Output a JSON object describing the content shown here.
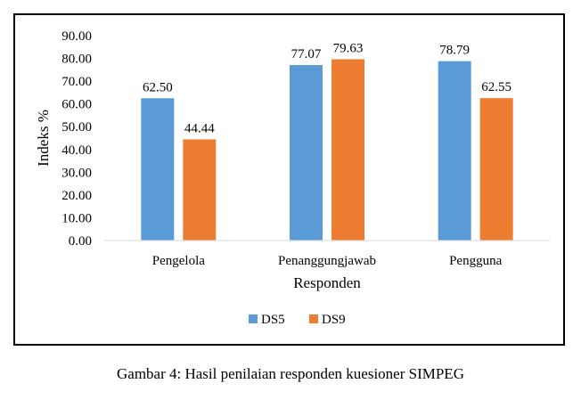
{
  "caption": "Gambar 4:  Hasil penilaian responden kuesioner SIMPEG",
  "chart_data": {
    "type": "bar",
    "title": "",
    "xlabel": "Responden",
    "ylabel": "Indeks %",
    "categories": [
      "Pengelola",
      "Penanggungjawab",
      "Pengguna"
    ],
    "series": [
      {
        "name": "DS5",
        "color": "#5b9bd5",
        "values": [
          62.5,
          77.07,
          78.79
        ],
        "labels": [
          "62.50",
          "77.07",
          "78.79"
        ]
      },
      {
        "name": "DS9",
        "color": "#ed7d31",
        "values": [
          44.44,
          79.63,
          62.55
        ],
        "labels": [
          "44.44",
          "79.63",
          "62.55"
        ]
      }
    ],
    "ylim": [
      0,
      90
    ],
    "yticks": [
      "0.00",
      "10.00",
      "20.00",
      "30.00",
      "40.00",
      "50.00",
      "60.00",
      "70.00",
      "80.00",
      "90.00"
    ],
    "grid": false,
    "legend_position": "bottom"
  }
}
